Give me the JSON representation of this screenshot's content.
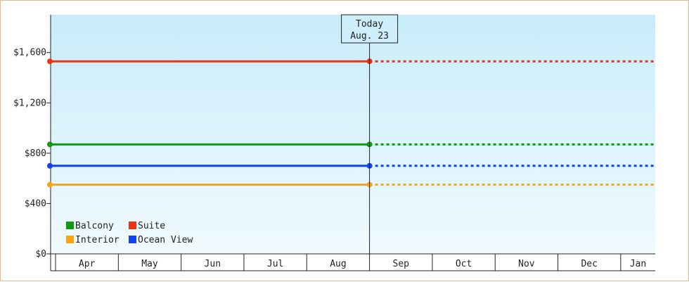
{
  "chart_data": {
    "type": "line",
    "title": "",
    "xlabel": "",
    "ylabel": "",
    "categories": [
      "Apr",
      "May",
      "Jun",
      "Jul",
      "Aug",
      "Sep",
      "Oct",
      "Nov",
      "Dec",
      "Jan"
    ],
    "ylim": [
      0,
      1900
    ],
    "yticks": [
      0,
      400,
      800,
      1200,
      1600
    ],
    "ytick_labels": [
      "$0",
      "$400",
      "$800",
      "$1,200",
      "$1,600"
    ],
    "grid": false,
    "legend_position": "bottom-left",
    "today": {
      "title": "Today",
      "date": "Aug. 23",
      "month_index": 4
    },
    "series": [
      {
        "name": "Balcony",
        "color": "#119911",
        "value": 870
      },
      {
        "name": "Suite",
        "color": "#ee3311",
        "value": 1530
      },
      {
        "name": "Interior",
        "color": "#f5a511",
        "value": 550
      },
      {
        "name": "Ocean View",
        "color": "#1144ee",
        "value": 700
      }
    ],
    "style": {
      "background_top": "#c8ecfa",
      "background_bottom": "#f0fafe",
      "axis_color": "#222222",
      "frame_color": "#e8b98a"
    }
  }
}
